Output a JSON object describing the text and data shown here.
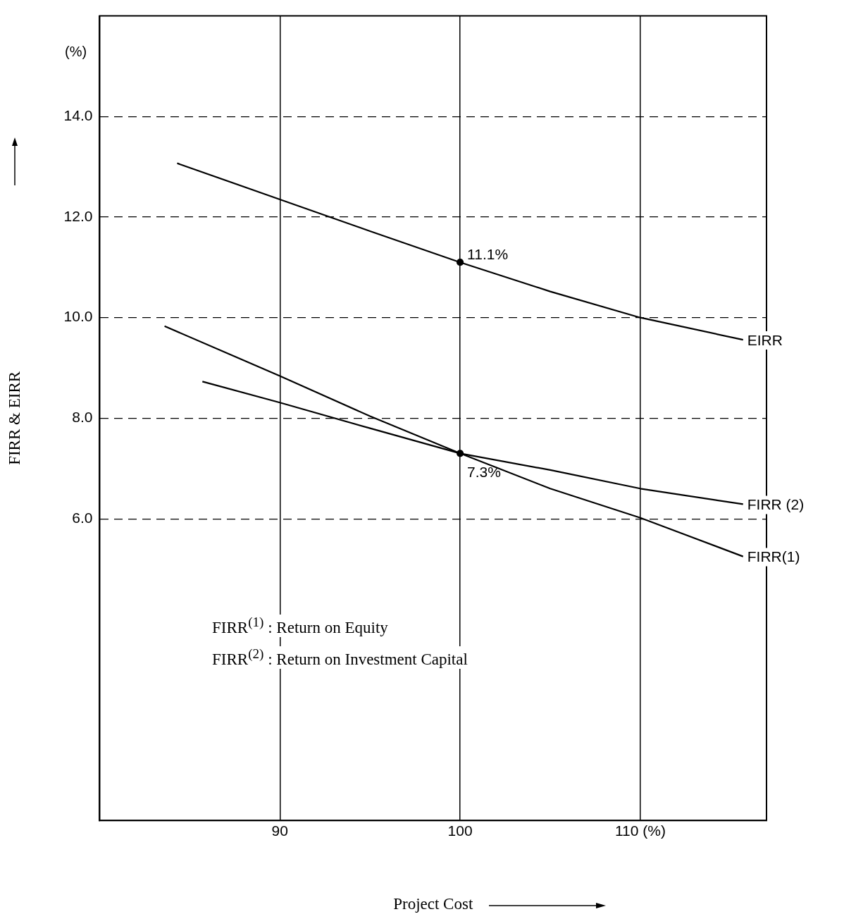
{
  "chart_data": {
    "type": "line",
    "xlabel": "Project Cost",
    "ylabel": "FIRR & EIRR",
    "xlim": [
      80,
      117
    ],
    "xticks": [
      90,
      100,
      {
        "value": 110,
        "label": "110 (%)"
      }
    ],
    "ylim": [
      0,
      16
    ],
    "yticks": [
      {
        "value": 6,
        "label": "6.0"
      },
      {
        "value": 8,
        "label": "8.0"
      },
      {
        "value": 10,
        "label": "10.0"
      },
      {
        "value": 12,
        "label": "12.0"
      },
      {
        "value": 14,
        "label": "14.0"
      }
    ],
    "grid": true,
    "legend": false,
    "marker": "none",
    "series": [
      {
        "name": "EIRR",
        "color": "#000000",
        "x": [
          84.3,
          90,
          95,
          100,
          105,
          110,
          115.7
        ],
        "values": [
          13.07,
          12.35,
          11.72,
          11.1,
          10.52,
          10.0,
          9.56
        ]
      },
      {
        "name": "FIRR (2)",
        "color": "#000000",
        "x": [
          85.7,
          90,
          95,
          100,
          105,
          110,
          115.7
        ],
        "values": [
          8.73,
          8.31,
          7.8,
          7.3,
          6.97,
          6.6,
          6.29
        ]
      },
      {
        "name": "FIRR(1)",
        "color": "#000000",
        "x": [
          83.6,
          90,
          95,
          100,
          105,
          110,
          115.7
        ],
        "values": [
          9.83,
          8.84,
          8.04,
          7.3,
          6.6,
          6.02,
          5.25
        ]
      },
      {
        "type": "scatter",
        "marker": "circle",
        "color": "#000000",
        "x": [
          100,
          100
        ],
        "values": [
          11.1,
          7.3
        ]
      }
    ],
    "annotations": [
      "(%)",
      {
        "text": "11.1%",
        "x": 100,
        "y": 11.1
      },
      {
        "text": "7.3%",
        "x": 100,
        "y": 7.3
      },
      "FIRR$^{(1)}$ :  Return on Equity",
      "FIRR$^{(2)}$ :  Return on Investment Capital"
    ]
  }
}
